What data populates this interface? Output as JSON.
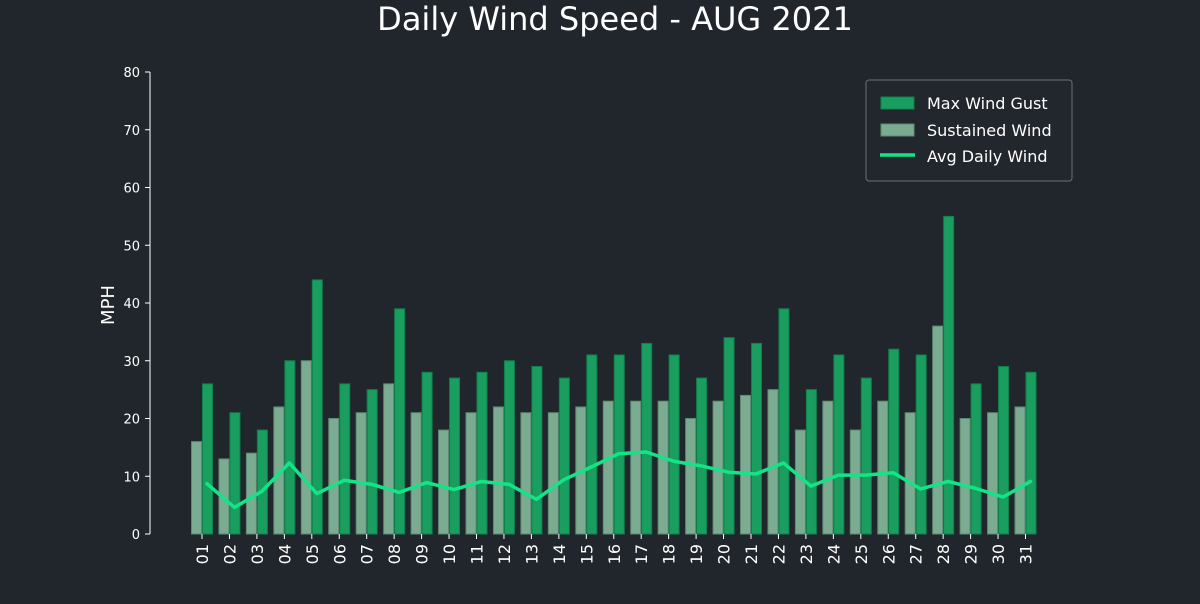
{
  "colors": {
    "background": "#21262d",
    "gust": "#1a9e60",
    "gust_edge": "#10804b",
    "sustained": "#7bab91",
    "sustained_edge": "#5d8a72",
    "avg_line": "#14e387",
    "text": "#ffffff",
    "axis": "#ffffff",
    "legend_bg": "#22272e",
    "legend_edge": "#6b7077"
  },
  "chart_data": {
    "type": "bar",
    "title": "Daily Wind Speed - AUG 2021",
    "xlabel": "",
    "ylabel": "MPH",
    "ylim": [
      0,
      80
    ],
    "yticks": [
      0,
      10,
      20,
      30,
      40,
      50,
      60,
      70,
      80
    ],
    "grid": false,
    "legend_position": "top-right",
    "categories": [
      "01",
      "02",
      "03",
      "04",
      "05",
      "06",
      "07",
      "08",
      "09",
      "10",
      "11",
      "12",
      "13",
      "14",
      "15",
      "16",
      "17",
      "18",
      "19",
      "20",
      "21",
      "22",
      "23",
      "24",
      "25",
      "26",
      "27",
      "28",
      "29",
      "30",
      "31"
    ],
    "series": [
      {
        "name": "Max Wind Gust",
        "kind": "bar",
        "values": [
          26,
          21,
          18,
          30,
          44,
          26,
          25,
          39,
          28,
          27,
          28,
          30,
          29,
          27,
          31,
          31,
          33,
          31,
          27,
          34,
          33,
          39,
          25,
          31,
          27,
          32,
          31,
          55,
          26,
          29,
          28
        ]
      },
      {
        "name": "Sustained Wind",
        "kind": "bar",
        "values": [
          16,
          13,
          14,
          22,
          30,
          20,
          21,
          26,
          21,
          18,
          21,
          22,
          21,
          21,
          22,
          23,
          23,
          23,
          20,
          23,
          24,
          25,
          18,
          23,
          18,
          23,
          21,
          36,
          20,
          21,
          22
        ]
      },
      {
        "name": "Avg Daily Wind",
        "kind": "line",
        "values": [
          8.7,
          4.6,
          7.4,
          12.3,
          7.0,
          9.3,
          8.6,
          7.2,
          8.9,
          7.7,
          9.1,
          8.6,
          6.0,
          9.4,
          11.6,
          13.9,
          14.2,
          12.6,
          11.8,
          10.7,
          10.4,
          12.3,
          8.3,
          10.2,
          10.2,
          10.6,
          7.8,
          9.1,
          7.9,
          6.4,
          9.1
        ]
      }
    ]
  }
}
